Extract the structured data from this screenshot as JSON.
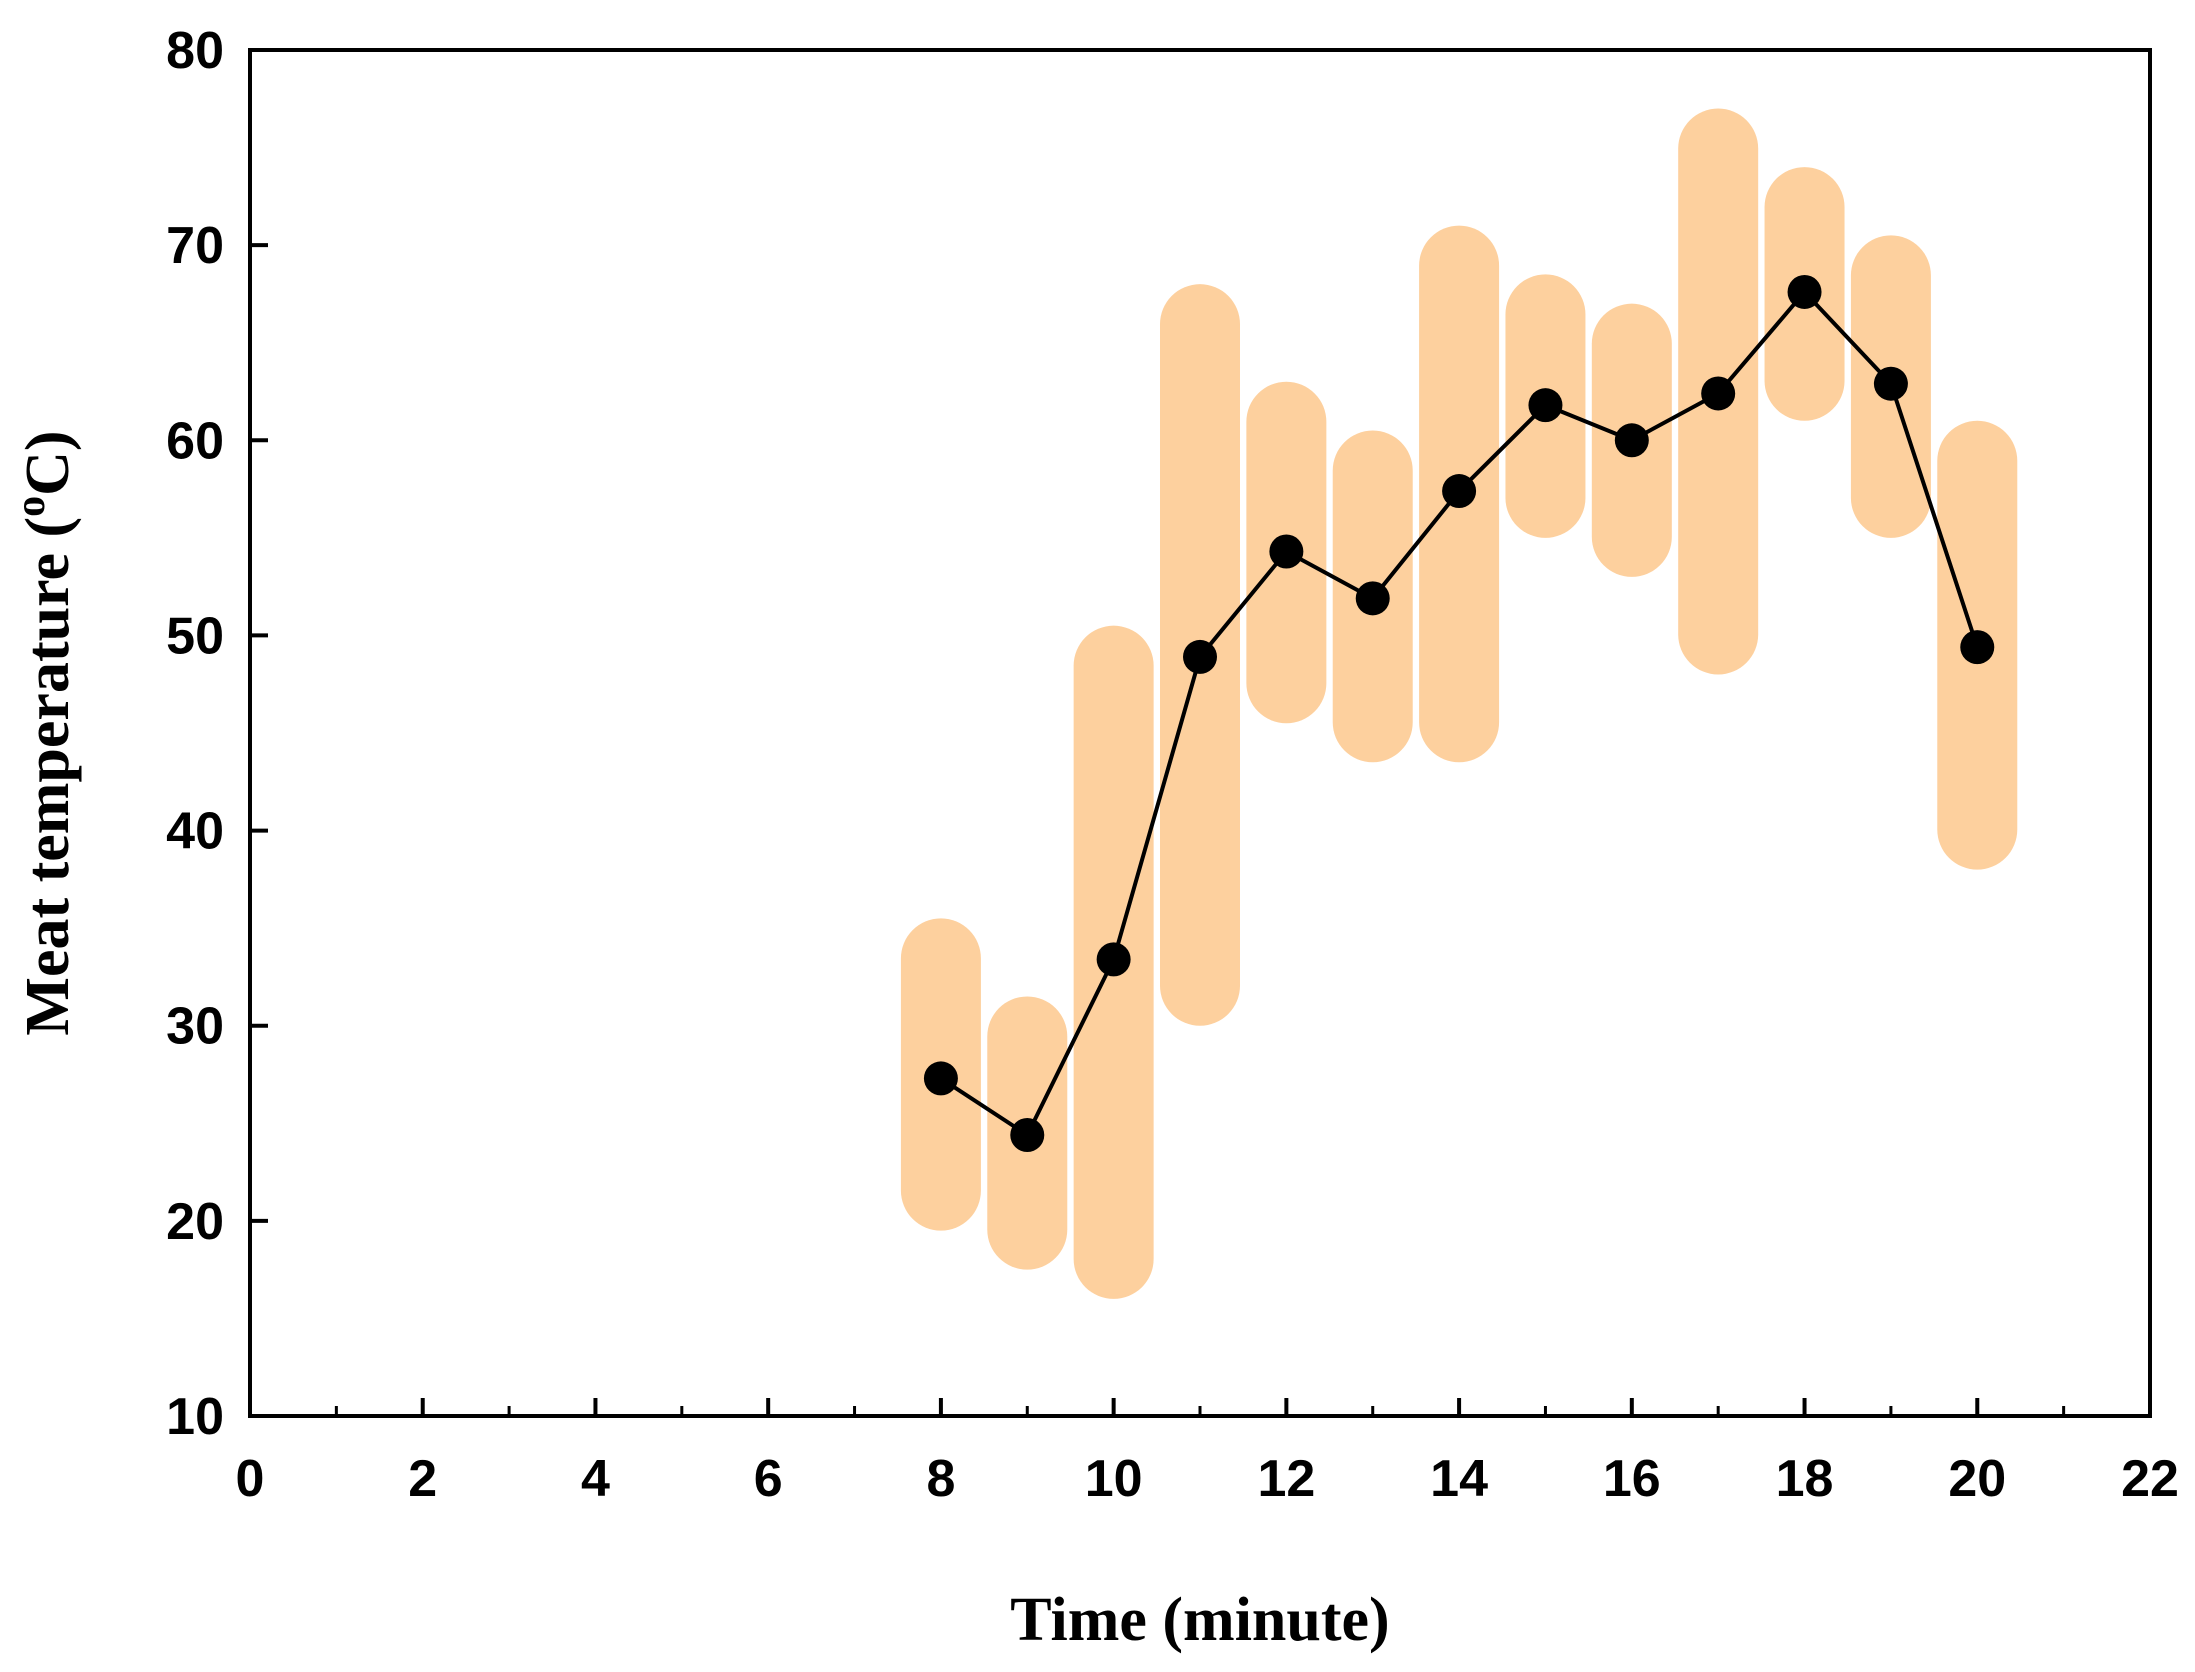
{
  "chart_data": {
    "type": "line",
    "title": "",
    "xlabel": "Time (minute)",
    "ylabel_main": "Meat temperature (",
    "ylabel_super": "o",
    "ylabel_unit": "C)",
    "xlim": [
      0,
      22
    ],
    "ylim": [
      10,
      80
    ],
    "x_ticks": [
      0,
      2,
      4,
      6,
      8,
      10,
      12,
      14,
      16,
      18,
      20,
      22
    ],
    "x_tick_labels": [
      "0",
      "2",
      "4",
      "6",
      "8",
      "10",
      "12",
      "14",
      "16",
      "18",
      "20",
      "22"
    ],
    "x_minor_ticks": [
      1,
      3,
      5,
      7,
      9,
      11,
      13,
      15,
      17,
      19,
      21
    ],
    "y_ticks": [
      10,
      20,
      30,
      40,
      50,
      60,
      70,
      80
    ],
    "y_tick_labels": [
      "10",
      "20",
      "30",
      "40",
      "50",
      "60",
      "70",
      "80"
    ],
    "grid": false,
    "series": [
      {
        "name": "Meat temperature",
        "color": "#000000",
        "range_color": "#fdd09e",
        "x": [
          8,
          9,
          10,
          11,
          12,
          13,
          14,
          15,
          16,
          17,
          18,
          19,
          20
        ],
        "y": [
          27.3,
          24.4,
          33.4,
          48.9,
          54.3,
          51.9,
          57.4,
          61.8,
          60.0,
          62.4,
          67.6,
          62.9,
          49.4
        ],
        "range_low": [
          19.5,
          17.5,
          16.0,
          30.0,
          45.5,
          43.5,
          43.5,
          55.0,
          53.0,
          48.0,
          61.0,
          55.0,
          38.0
        ],
        "range_high": [
          35.5,
          31.5,
          50.5,
          68.0,
          63.0,
          60.5,
          71.0,
          68.5,
          67.0,
          77.0,
          74.0,
          70.5,
          61.0
        ]
      }
    ]
  }
}
